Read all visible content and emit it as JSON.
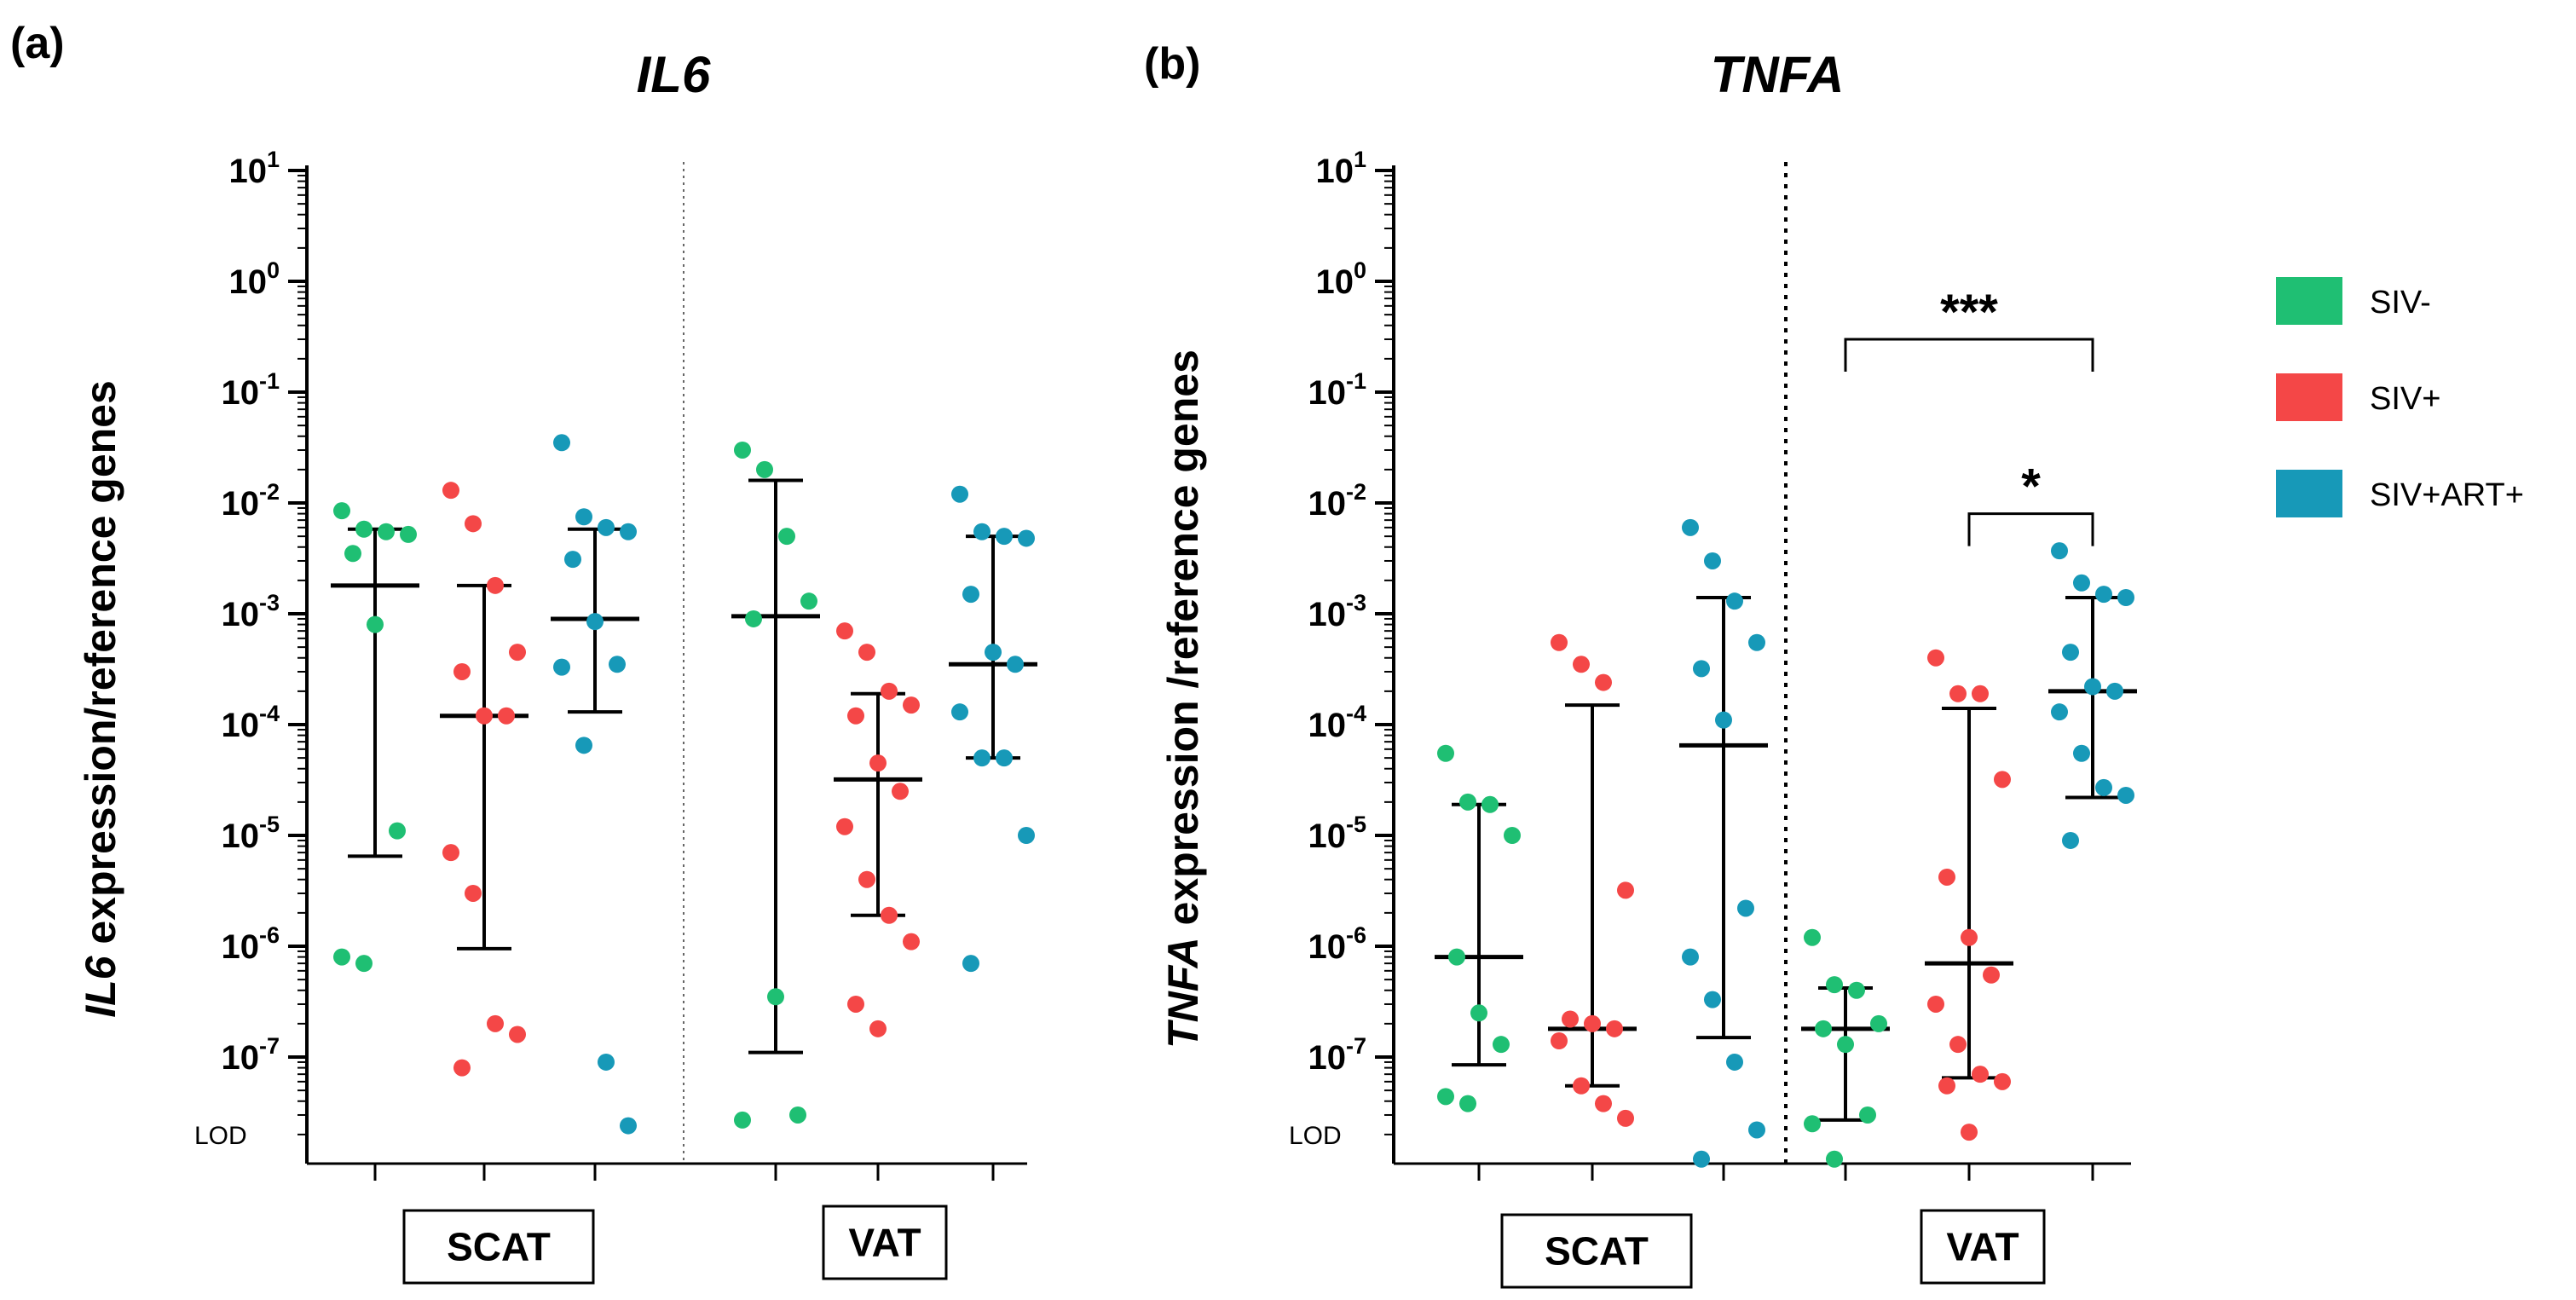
{
  "legend": [
    {
      "label": "SIV-",
      "color": "#1fbf73"
    },
    {
      "label": "SIV+",
      "color": "#f44747"
    },
    {
      "label": "SIV+ART+",
      "color": "#1799b8"
    }
  ],
  "groups": [
    "SCAT",
    "VAT"
  ],
  "chart_data": [
    {
      "type": "scatter",
      "panel": "(a)",
      "title": "IL6",
      "ylabel_italic": "IL6",
      "ylabel_rest": " expression/reference genes",
      "yscale": "log10",
      "yticks": [
        {
          "base": "10",
          "exp": "1",
          "value": 10
        },
        {
          "base": "10",
          "exp": "0",
          "value": 1
        },
        {
          "base": "10",
          "exp": "-1",
          "value": 0.1
        },
        {
          "base": "10",
          "exp": "-2",
          "value": 0.01
        },
        {
          "base": "10",
          "exp": "-3",
          "value": 0.001
        },
        {
          "base": "10",
          "exp": "-4",
          "value": 0.0001
        },
        {
          "base": "10",
          "exp": "-5",
          "value": 1e-05
        },
        {
          "base": "10",
          "exp": "-6",
          "value": 1e-06
        },
        {
          "base": "10",
          "exp": "-7",
          "value": 1e-07
        }
      ],
      "lod_label": "LOD",
      "divider_style": "dotted-thin",
      "series": [
        {
          "group": "SCAT",
          "name": "SIV-",
          "values": [
            0.0085,
            0.0058,
            0.0055,
            0.0052,
            0.0035,
            0.0008,
            1.1e-05,
            8e-07,
            7e-07
          ],
          "median": 0.0018,
          "iqr": [
            6.5e-06,
            0.0058
          ]
        },
        {
          "group": "SCAT",
          "name": "SIV+",
          "values": [
            0.013,
            0.0065,
            0.0018,
            0.00045,
            0.0003,
            0.00012,
            0.00012,
            7e-06,
            3e-06,
            2e-07,
            1.6e-07,
            8e-08
          ],
          "median": 0.00012,
          "iqr": [
            9.5e-07,
            0.0018
          ]
        },
        {
          "group": "SCAT",
          "name": "SIV+ART+",
          "values": [
            0.035,
            0.0075,
            0.006,
            0.0055,
            0.0031,
            0.00085,
            0.00035,
            0.00033,
            6.5e-05,
            9e-08,
            2.4e-08
          ],
          "median": 0.0009,
          "iqr": [
            0.00013,
            0.0058
          ]
        },
        {
          "group": "VAT",
          "name": "SIV-",
          "values": [
            0.03,
            0.02,
            0.005,
            0.0013,
            0.0009,
            3.5e-07,
            3e-08,
            2.7e-08
          ],
          "median": 0.00095,
          "iqr": [
            1.1e-07,
            0.016
          ]
        },
        {
          "group": "VAT",
          "name": "SIV+",
          "values": [
            0.0007,
            0.00045,
            0.0002,
            0.00015,
            0.00012,
            4.5e-05,
            2.5e-05,
            1.2e-05,
            4e-06,
            1.9e-06,
            1.1e-06,
            3e-07,
            1.8e-07
          ],
          "median": 3.2e-05,
          "iqr": [
            1.9e-06,
            0.00019
          ]
        },
        {
          "group": "VAT",
          "name": "SIV+ART+",
          "values": [
            0.012,
            0.0055,
            0.005,
            0.0048,
            0.0015,
            0.00045,
            0.00035,
            0.00013,
            5e-05,
            5e-05,
            1e-05,
            7e-07
          ],
          "median": 0.00035,
          "iqr": [
            5e-05,
            0.005
          ]
        }
      ],
      "significance": []
    },
    {
      "type": "scatter",
      "panel": "(b)",
      "title": "TNFA",
      "ylabel_italic": "TNFA",
      "ylabel_rest": " expression /reference genes",
      "yscale": "log10",
      "yticks": [
        {
          "base": "10",
          "exp": "1",
          "value": 10
        },
        {
          "base": "10",
          "exp": "0",
          "value": 1
        },
        {
          "base": "10",
          "exp": "-1",
          "value": 0.1
        },
        {
          "base": "10",
          "exp": "-2",
          "value": 0.01
        },
        {
          "base": "10",
          "exp": "-3",
          "value": 0.001
        },
        {
          "base": "10",
          "exp": "-4",
          "value": 0.0001
        },
        {
          "base": "10",
          "exp": "-5",
          "value": 1e-05
        },
        {
          "base": "10",
          "exp": "-6",
          "value": 1e-06
        },
        {
          "base": "10",
          "exp": "-7",
          "value": 1e-07
        }
      ],
      "lod_label": "LOD",
      "divider_style": "dotted-thick",
      "series": [
        {
          "group": "SCAT",
          "name": "SIV-",
          "values": [
            5.5e-05,
            2e-05,
            1.9e-05,
            1e-05,
            8e-07,
            2.5e-07,
            1.3e-07,
            4.4e-08,
            3.8e-08
          ],
          "median": 8e-07,
          "iqr": [
            8.5e-08,
            1.9e-05
          ]
        },
        {
          "group": "SCAT",
          "name": "SIV+",
          "values": [
            0.00055,
            0.00035,
            0.00024,
            3.2e-06,
            2.2e-07,
            2e-07,
            1.8e-07,
            1.4e-07,
            5.5e-08,
            3.8e-08,
            2.8e-08
          ],
          "median": 1.8e-07,
          "iqr": [
            5.5e-08,
            0.00015
          ]
        },
        {
          "group": "SCAT",
          "name": "SIV+ART+",
          "values": [
            0.006,
            0.003,
            0.0013,
            0.00055,
            0.00032,
            0.00011,
            2.2e-06,
            8e-07,
            3.3e-07,
            9e-08,
            2.2e-08,
            1.2e-08
          ],
          "median": 6.5e-05,
          "iqr": [
            1.5e-07,
            0.0014
          ]
        },
        {
          "group": "VAT",
          "name": "SIV-",
          "values": [
            1.2e-06,
            4.5e-07,
            4e-07,
            2e-07,
            1.8e-07,
            1.3e-07,
            3e-08,
            2.5e-08,
            1.2e-08
          ],
          "median": 1.8e-07,
          "iqr": [
            2.7e-08,
            4.2e-07
          ]
        },
        {
          "group": "VAT",
          "name": "SIV+",
          "values": [
            0.0004,
            0.00019,
            0.00019,
            3.2e-05,
            4.2e-06,
            1.2e-06,
            5.5e-07,
            3e-07,
            1.3e-07,
            7e-08,
            6e-08,
            5.5e-08,
            2.1e-08
          ],
          "median": 7e-07,
          "iqr": [
            6.5e-08,
            0.00014
          ]
        },
        {
          "group": "VAT",
          "name": "SIV+ART+",
          "values": [
            0.0037,
            0.0019,
            0.0015,
            0.0014,
            0.00045,
            0.00022,
            0.0002,
            0.00013,
            5.5e-05,
            2.7e-05,
            2.3e-05,
            9e-06
          ],
          "median": 0.0002,
          "iqr": [
            2.2e-05,
            0.0014
          ]
        }
      ],
      "significance": [
        {
          "from": "SIV-",
          "to": "SIV+ART+",
          "group": "VAT",
          "label": "***",
          "level": 0.3
        },
        {
          "from": "SIV+",
          "to": "SIV+ART+",
          "group": "VAT",
          "label": "*",
          "level": 0.008
        }
      ]
    }
  ]
}
